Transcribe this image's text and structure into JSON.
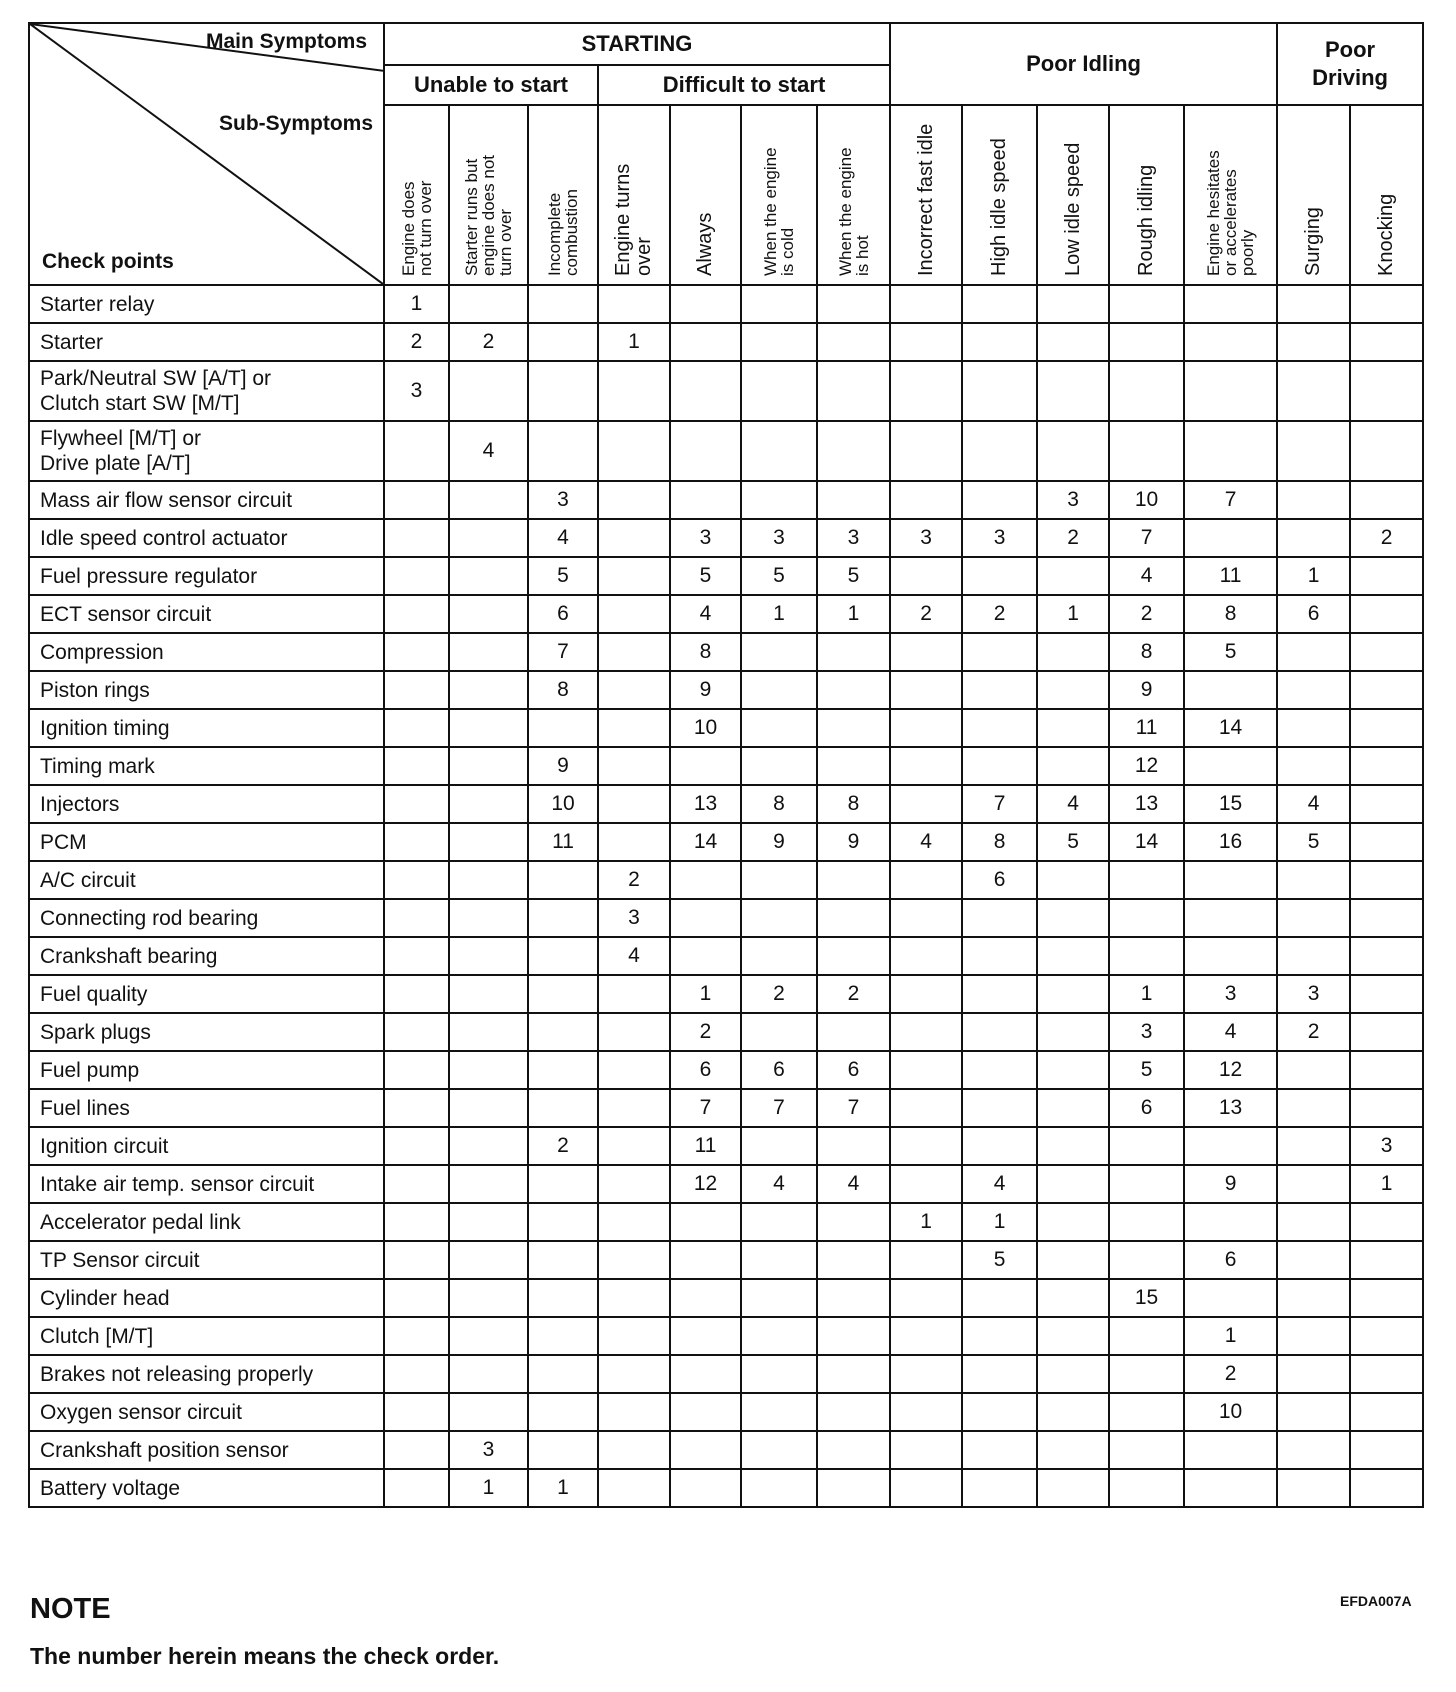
{
  "header": {
    "main_symptoms": "Main Symptoms",
    "sub_symptoms": "Sub-Symptoms",
    "check_points": "Check points",
    "starting": "STARTING",
    "unable_to_start": "Unable to start",
    "difficult_to_start": "Difficult to start",
    "poor_idling": "Poor Idling",
    "poor_driving": "Poor Driving"
  },
  "columns": [
    "Engine does\nnot turn over",
    "Starter runs but\nengine does not\nturn over",
    "Incomplete\ncombustion",
    "Engine turns\nover",
    "Always",
    "When the engine\nis cold",
    "When the engine\nis hot",
    "Incorrect  fast idle",
    "High idle speed",
    "Low idle speed",
    "Rough idling",
    "Engine hesitates\nor accelerates\npoorly",
    "Surging",
    "Knocking"
  ],
  "rows": [
    {
      "label": "Starter relay",
      "values": [
        "1",
        "",
        "",
        "",
        "",
        "",
        "",
        "",
        "",
        "",
        "",
        "",
        "",
        ""
      ]
    },
    {
      "label": "Starter",
      "values": [
        "2",
        "2",
        "",
        "1",
        "",
        "",
        "",
        "",
        "",
        "",
        "",
        "",
        "",
        ""
      ]
    },
    {
      "label": "Park/Neutral SW [A/T] or\nClutch start SW [M/T]",
      "values": [
        "3",
        "",
        "",
        "",
        "",
        "",
        "",
        "",
        "",
        "",
        "",
        "",
        "",
        ""
      ]
    },
    {
      "label": "Flywheel [M/T] or\nDrive plate [A/T]",
      "values": [
        "",
        "4",
        "",
        "",
        "",
        "",
        "",
        "",
        "",
        "",
        "",
        "",
        "",
        ""
      ]
    },
    {
      "label": "Mass air flow sensor circuit",
      "values": [
        "",
        "",
        "3",
        "",
        "",
        "",
        "",
        "",
        "",
        "3",
        "10",
        "7",
        "",
        ""
      ]
    },
    {
      "label": "Idle speed control actuator",
      "values": [
        "",
        "",
        "4",
        "",
        "3",
        "3",
        "3",
        "3",
        "3",
        "2",
        "7",
        "",
        "",
        "2"
      ]
    },
    {
      "label": "Fuel pressure regulator",
      "values": [
        "",
        "",
        "5",
        "",
        "5",
        "5",
        "5",
        "",
        "",
        "",
        "4",
        "11",
        "1",
        ""
      ]
    },
    {
      "label": "ECT sensor circuit",
      "values": [
        "",
        "",
        "6",
        "",
        "4",
        "1",
        "1",
        "2",
        "2",
        "1",
        "2",
        "8",
        "6",
        ""
      ]
    },
    {
      "label": "Compression",
      "values": [
        "",
        "",
        "7",
        "",
        "8",
        "",
        "",
        "",
        "",
        "",
        "8",
        "5",
        "",
        ""
      ]
    },
    {
      "label": "Piston rings",
      "values": [
        "",
        "",
        "8",
        "",
        "9",
        "",
        "",
        "",
        "",
        "",
        "9",
        "",
        "",
        ""
      ]
    },
    {
      "label": "Ignition timing",
      "values": [
        "",
        "",
        "",
        "",
        "10",
        "",
        "",
        "",
        "",
        "",
        "11",
        "14",
        "",
        ""
      ]
    },
    {
      "label": "Timing mark",
      "values": [
        "",
        "",
        "9",
        "",
        "",
        "",
        "",
        "",
        "",
        "",
        "12",
        "",
        "",
        ""
      ]
    },
    {
      "label": "Injectors",
      "values": [
        "",
        "",
        "10",
        "",
        "13",
        "8",
        "8",
        "",
        "7",
        "4",
        "13",
        "15",
        "4",
        ""
      ]
    },
    {
      "label": "PCM",
      "values": [
        "",
        "",
        "11",
        "",
        "14",
        "9",
        "9",
        "4",
        "8",
        "5",
        "14",
        "16",
        "5",
        ""
      ]
    },
    {
      "label": "A/C circuit",
      "values": [
        "",
        "",
        "",
        "2",
        "",
        "",
        "",
        "",
        "6",
        "",
        "",
        "",
        "",
        ""
      ]
    },
    {
      "label": "Connecting rod bearing",
      "values": [
        "",
        "",
        "",
        "3",
        "",
        "",
        "",
        "",
        "",
        "",
        "",
        "",
        "",
        ""
      ]
    },
    {
      "label": "Crankshaft bearing",
      "values": [
        "",
        "",
        "",
        "4",
        "",
        "",
        "",
        "",
        "",
        "",
        "",
        "",
        "",
        ""
      ]
    },
    {
      "label": "Fuel quality",
      "values": [
        "",
        "",
        "",
        "",
        "1",
        "2",
        "2",
        "",
        "",
        "",
        "1",
        "3",
        "3",
        ""
      ]
    },
    {
      "label": "Spark plugs",
      "values": [
        "",
        "",
        "",
        "",
        "2",
        "",
        "",
        "",
        "",
        "",
        "3",
        "4",
        "2",
        ""
      ]
    },
    {
      "label": "Fuel pump",
      "values": [
        "",
        "",
        "",
        "",
        "6",
        "6",
        "6",
        "",
        "",
        "",
        "5",
        "12",
        "",
        ""
      ]
    },
    {
      "label": "Fuel lines",
      "values": [
        "",
        "",
        "",
        "",
        "7",
        "7",
        "7",
        "",
        "",
        "",
        "6",
        "13",
        "",
        ""
      ]
    },
    {
      "label": "Ignition circuit",
      "values": [
        "",
        "",
        "2",
        "",
        "11",
        "",
        "",
        "",
        "",
        "",
        "",
        "",
        "",
        "3"
      ]
    },
    {
      "label": "Intake air temp. sensor circuit",
      "values": [
        "",
        "",
        "",
        "",
        "12",
        "4",
        "4",
        "",
        "4",
        "",
        "",
        "9",
        "",
        "1"
      ]
    },
    {
      "label": "Accelerator pedal link",
      "values": [
        "",
        "",
        "",
        "",
        "",
        "",
        "",
        "1",
        "1",
        "",
        "",
        "",
        "",
        ""
      ]
    },
    {
      "label": "TP Sensor circuit",
      "values": [
        "",
        "",
        "",
        "",
        "",
        "",
        "",
        "",
        "5",
        "",
        "",
        "6",
        "",
        ""
      ]
    },
    {
      "label": "Cylinder head",
      "values": [
        "",
        "",
        "",
        "",
        "",
        "",
        "",
        "",
        "",
        "",
        "15",
        "",
        "",
        ""
      ]
    },
    {
      "label": "Clutch [M/T]",
      "values": [
        "",
        "",
        "",
        "",
        "",
        "",
        "",
        "",
        "",
        "",
        "",
        "1",
        "",
        ""
      ]
    },
    {
      "label": "Brakes not releasing properly",
      "values": [
        "",
        "",
        "",
        "",
        "",
        "",
        "",
        "",
        "",
        "",
        "",
        "2",
        "",
        ""
      ]
    },
    {
      "label": "Oxygen sensor circuit",
      "values": [
        "",
        "",
        "",
        "",
        "",
        "",
        "",
        "",
        "",
        "",
        "",
        "10",
        "",
        ""
      ]
    },
    {
      "label": "Crankshaft position sensor",
      "values": [
        "",
        "3",
        "",
        "",
        "",
        "",
        "",
        "",
        "",
        "",
        "",
        "",
        "",
        ""
      ]
    },
    {
      "label": "Battery voltage",
      "values": [
        "",
        "1",
        "1",
        "",
        "",
        "",
        "",
        "",
        "",
        "",
        "",
        "",
        "",
        ""
      ]
    }
  ],
  "note": {
    "title": "NOTE",
    "text": "The number herein means the check order."
  },
  "figure_code": "EFDA007A"
}
